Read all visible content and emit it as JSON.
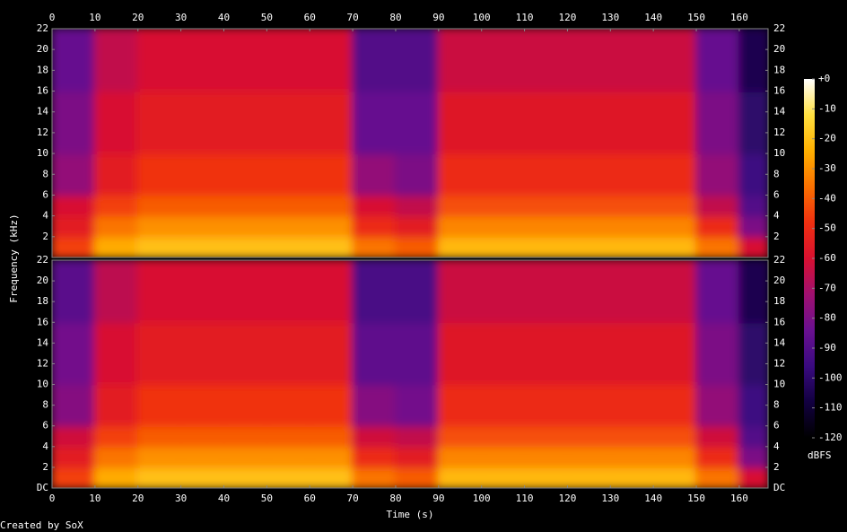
{
  "chart_data": {
    "type": "heatmap",
    "xlabel": "Time (s)",
    "ylabel": "Frequency (kHz)",
    "colorbar_label": "dBFS",
    "credit": "Created by SoX",
    "xlim": [
      0,
      166.7
    ],
    "xticks": [
      0,
      10,
      20,
      30,
      40,
      50,
      60,
      70,
      80,
      90,
      100,
      110,
      120,
      130,
      140,
      150,
      160
    ],
    "ylim": [
      0,
      22
    ],
    "x_bins": [
      0,
      10,
      20,
      30,
      40,
      50,
      60,
      70,
      80,
      90,
      100,
      110,
      120,
      130,
      140,
      150,
      160,
      166.7
    ],
    "y_bins": [
      0,
      2,
      4,
      6,
      10,
      16,
      22
    ],
    "zlim": [
      -120,
      0
    ],
    "zticks": [
      {
        "value": 0,
        "label": "+0"
      },
      -10,
      -20,
      -30,
      -40,
      -50,
      -60,
      -70,
      -80,
      -90,
      -100,
      -110,
      -120
    ],
    "colorscale": [
      "#000000",
      "#120040",
      "#3a0a80",
      "#6a1090",
      "#a01070",
      "#d81030",
      "#f03010",
      "#fa7000",
      "#ffb000",
      "#ffe040",
      "#ffffff"
    ],
    "channels": [
      {
        "yticks": [
          2,
          4,
          6,
          8,
          10,
          12,
          14,
          16,
          18,
          20,
          22
        ],
        "values": [
          [
            -45,
            -25,
            -20,
            -20,
            -20,
            -20,
            -20,
            -35,
            -40,
            -22,
            -22,
            -22,
            -22,
            -22,
            -22,
            -35,
            -60
          ],
          [
            -55,
            -35,
            -30,
            -30,
            -30,
            -30,
            -30,
            -50,
            -55,
            -32,
            -32,
            -32,
            -32,
            -32,
            -32,
            -50,
            -80
          ],
          [
            -60,
            -45,
            -40,
            -40,
            -40,
            -40,
            -40,
            -60,
            -65,
            -42,
            -42,
            -42,
            -42,
            -42,
            -42,
            -65,
            -90
          ],
          [
            -75,
            -55,
            -48,
            -48,
            -48,
            -48,
            -48,
            -75,
            -80,
            -50,
            -50,
            -50,
            -50,
            -50,
            -50,
            -75,
            -95
          ],
          [
            -80,
            -60,
            -55,
            -55,
            -55,
            -55,
            -55,
            -85,
            -85,
            -57,
            -57,
            -57,
            -57,
            -57,
            -57,
            -80,
            -100
          ],
          [
            -85,
            -65,
            -60,
            -60,
            -60,
            -60,
            -60,
            -90,
            -90,
            -63,
            -63,
            -63,
            -63,
            -63,
            -63,
            -85,
            -105
          ]
        ]
      },
      {
        "yticks": [
          {
            "value": 0,
            "label": "DC"
          },
          2,
          4,
          6,
          8,
          10,
          12,
          14,
          16,
          18,
          20,
          22
        ],
        "values": [
          [
            -45,
            -25,
            -20,
            -20,
            -20,
            -20,
            -20,
            -35,
            -40,
            -22,
            -22,
            -22,
            -22,
            -22,
            -22,
            -35,
            -60
          ],
          [
            -55,
            -35,
            -30,
            -30,
            -30,
            -30,
            -30,
            -50,
            -55,
            -32,
            -32,
            -32,
            -32,
            -32,
            -32,
            -50,
            -80
          ],
          [
            -62,
            -45,
            -40,
            -40,
            -40,
            -40,
            -40,
            -62,
            -65,
            -42,
            -42,
            -42,
            -42,
            -42,
            -42,
            -62,
            -90
          ],
          [
            -78,
            -55,
            -48,
            -48,
            -48,
            -48,
            -48,
            -78,
            -82,
            -50,
            -50,
            -50,
            -50,
            -50,
            -50,
            -75,
            -95
          ],
          [
            -82,
            -60,
            -55,
            -55,
            -55,
            -55,
            -55,
            -87,
            -87,
            -57,
            -57,
            -57,
            -57,
            -57,
            -57,
            -80,
            -100
          ],
          [
            -88,
            -66,
            -60,
            -60,
            -60,
            -60,
            -60,
            -92,
            -92,
            -63,
            -63,
            -63,
            -63,
            -63,
            -63,
            -85,
            -105
          ]
        ]
      }
    ]
  }
}
